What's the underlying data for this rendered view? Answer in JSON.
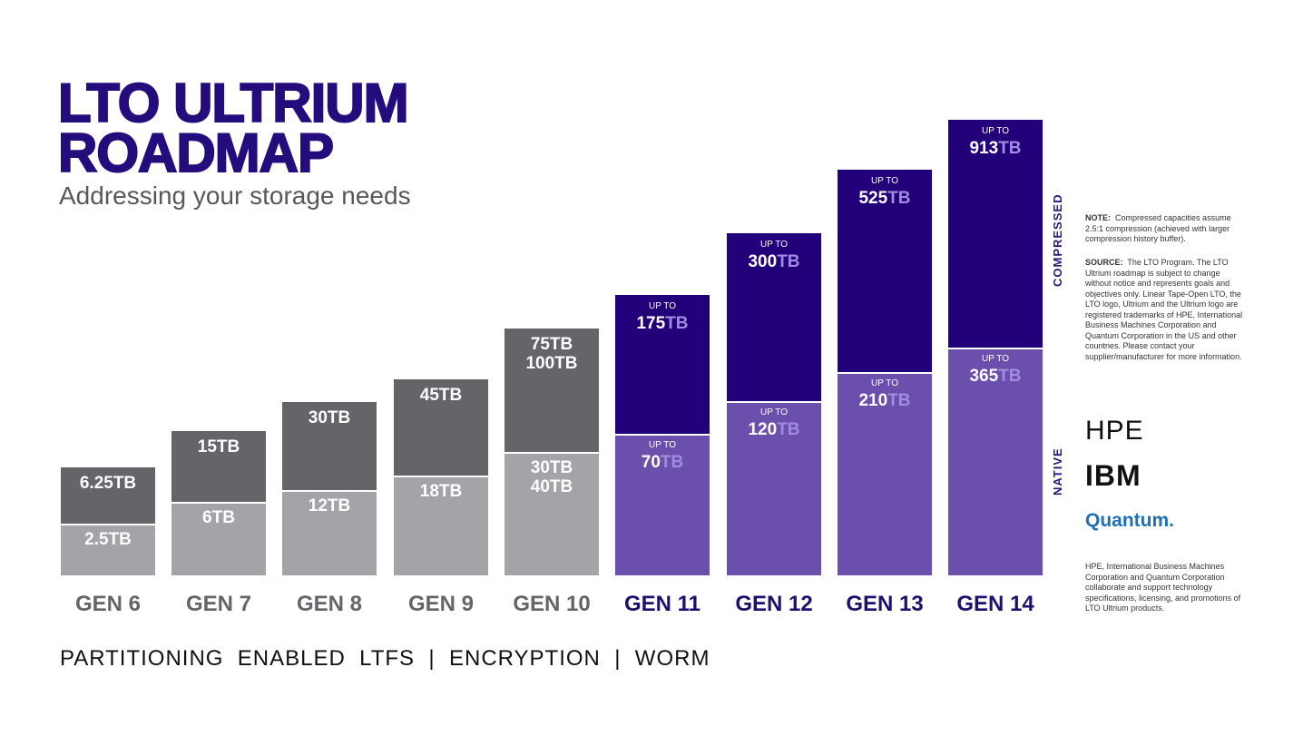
{
  "header": {
    "title_line1": "LTO ULTRIUM",
    "title_line2": "ROADMAP",
    "subtitle": "Addressing your storage needs"
  },
  "generations": [
    {
      "label": "GEN 6",
      "compressed": {
        "lines": [
          "6.25TB"
        ]
      },
      "native": {
        "lines": [
          "2.5TB"
        ]
      }
    },
    {
      "label": "GEN 7",
      "compressed": {
        "lines": [
          "15TB"
        ]
      },
      "native": {
        "lines": [
          "6TB"
        ]
      }
    },
    {
      "label": "GEN 8",
      "compressed": {
        "lines": [
          "30TB"
        ]
      },
      "native": {
        "lines": [
          "12TB"
        ]
      }
    },
    {
      "label": "GEN 9",
      "compressed": {
        "lines": [
          "45TB"
        ]
      },
      "native": {
        "lines": [
          "18TB"
        ]
      }
    },
    {
      "label": "GEN 10",
      "compressed": {
        "lines": [
          "75TB",
          "100TB"
        ]
      },
      "native": {
        "lines": [
          "30TB",
          "40TB"
        ]
      }
    },
    {
      "label": "GEN 11",
      "compressed": {
        "prefix": "UP TO",
        "value": "175",
        "unit": "TB"
      },
      "native": {
        "prefix": "UP TO",
        "value": "70",
        "unit": "TB"
      }
    },
    {
      "label": "GEN 12",
      "compressed": {
        "prefix": "UP TO",
        "value": "300",
        "unit": "TB"
      },
      "native": {
        "prefix": "UP TO",
        "value": "120",
        "unit": "TB"
      }
    },
    {
      "label": "GEN 13",
      "compressed": {
        "prefix": "UP TO",
        "value": "525",
        "unit": "TB"
      },
      "native": {
        "prefix": "UP TO",
        "value": "210",
        "unit": "TB"
      }
    },
    {
      "label": "GEN 14",
      "compressed": {
        "prefix": "UP TO",
        "value": "913",
        "unit": "TB"
      },
      "native": {
        "prefix": "UP TO",
        "value": "365",
        "unit": "TB"
      }
    }
  ],
  "side_labels": {
    "compressed": "COMPRESSED",
    "native": "NATIVE"
  },
  "notes": [
    {
      "label": "NOTE:",
      "text": "Compressed capacities assume 2.5:1 compression (achieved with larger compression history buffer)."
    },
    {
      "label": "SOURCE:",
      "text": "The LTO Program. The LTO Ultrium roadmap is subject to change without notice and represents goals and objectives only. Linear Tape-Open LTO, the LTO logo, Ultrium and the Ultrium logo are registered trademarks of HPE, International Business Machines Corporation and Quantum Corporation in the US and other countries. Please contact your supplier/manufacturer for more information."
    }
  ],
  "logos": [
    "HPE",
    "IBM",
    "Quantum."
  ],
  "partners_note": "HPE, International Business Machines Corporation and Quantum Corporation collaborate and support technology specifications, licensing, and promotions of LTO Ultrium products.",
  "footer": "PARTITIONING  ENABLED  LTFS  |  ENCRYPTION  |  WORM"
}
